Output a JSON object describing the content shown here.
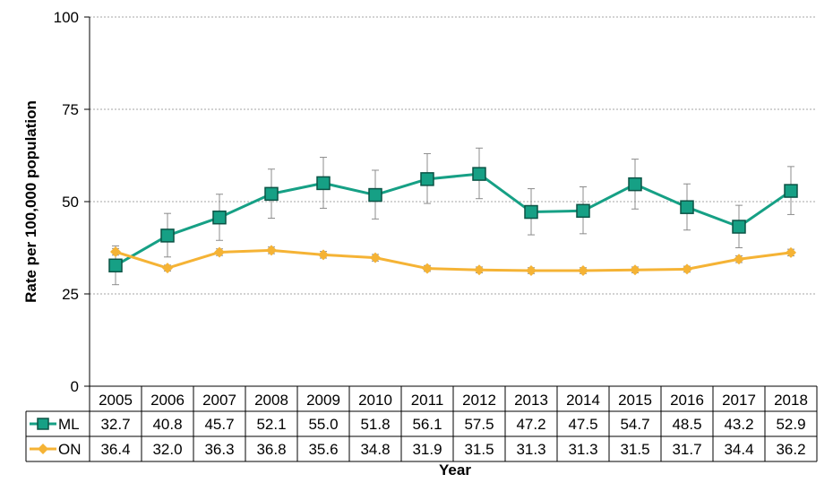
{
  "chart_data": {
    "type": "line",
    "title": "",
    "xlabel": "Year",
    "ylabel": "Rate per 100,000 population",
    "ylim": [
      0,
      100
    ],
    "y_ticks": [
      0,
      25,
      50,
      75,
      100
    ],
    "grid": true,
    "legend": "data-table-below",
    "x": [
      "2005",
      "2006",
      "2007",
      "2008",
      "2009",
      "2010",
      "2011",
      "2012",
      "2013",
      "2014",
      "2015",
      "2016",
      "2017",
      "2018"
    ],
    "series": [
      {
        "name": "ML",
        "color": "#16a085",
        "marker": "square",
        "values": [
          32.7,
          40.8,
          45.7,
          52.1,
          55.0,
          51.8,
          56.1,
          57.5,
          47.2,
          47.5,
          54.7,
          48.5,
          43.2,
          52.9
        ],
        "labels": [
          "32.7",
          "40.8",
          "45.7",
          "52.1",
          "55.0",
          "51.8",
          "56.1",
          "57.5",
          "47.2",
          "47.5",
          "54.7",
          "48.5",
          "43.2",
          "52.9"
        ],
        "ci_low": [
          27.5,
          35.0,
          39.5,
          45.5,
          48.2,
          45.3,
          49.5,
          50.8,
          41.0,
          41.3,
          48.0,
          42.3,
          37.5,
          46.5
        ],
        "ci_high": [
          38.0,
          46.8,
          52.0,
          58.8,
          62.0,
          58.5,
          63.0,
          64.5,
          53.5,
          54.0,
          61.5,
          54.8,
          49.0,
          59.5
        ]
      },
      {
        "name": "ON",
        "color": "#f5b335",
        "marker": "diamond",
        "values": [
          36.4,
          32.0,
          36.3,
          36.8,
          35.6,
          34.8,
          31.9,
          31.5,
          31.3,
          31.3,
          31.5,
          31.7,
          34.4,
          36.2
        ],
        "labels": [
          "36.4",
          "32.0",
          "36.3",
          "36.8",
          "35.6",
          "34.8",
          "31.9",
          "31.5",
          "31.3",
          "31.3",
          "31.5",
          "31.7",
          "34.4",
          "36.2"
        ],
        "ci_low": [
          35.5,
          31.2,
          35.4,
          35.9,
          34.7,
          33.9,
          31.1,
          30.7,
          30.5,
          30.5,
          30.7,
          30.9,
          33.5,
          35.3
        ],
        "ci_high": [
          37.3,
          32.8,
          37.2,
          37.7,
          36.5,
          35.7,
          32.7,
          32.3,
          32.1,
          32.1,
          32.3,
          32.5,
          35.3,
          37.1
        ]
      }
    ],
    "colors": {
      "grid": "#a6a6a6",
      "axis": "#000000",
      "errorbar": "#8c8c8c",
      "ml_fill": "#16a085",
      "ml_edge": "#0b5345",
      "on_fill": "#f5b335"
    }
  }
}
